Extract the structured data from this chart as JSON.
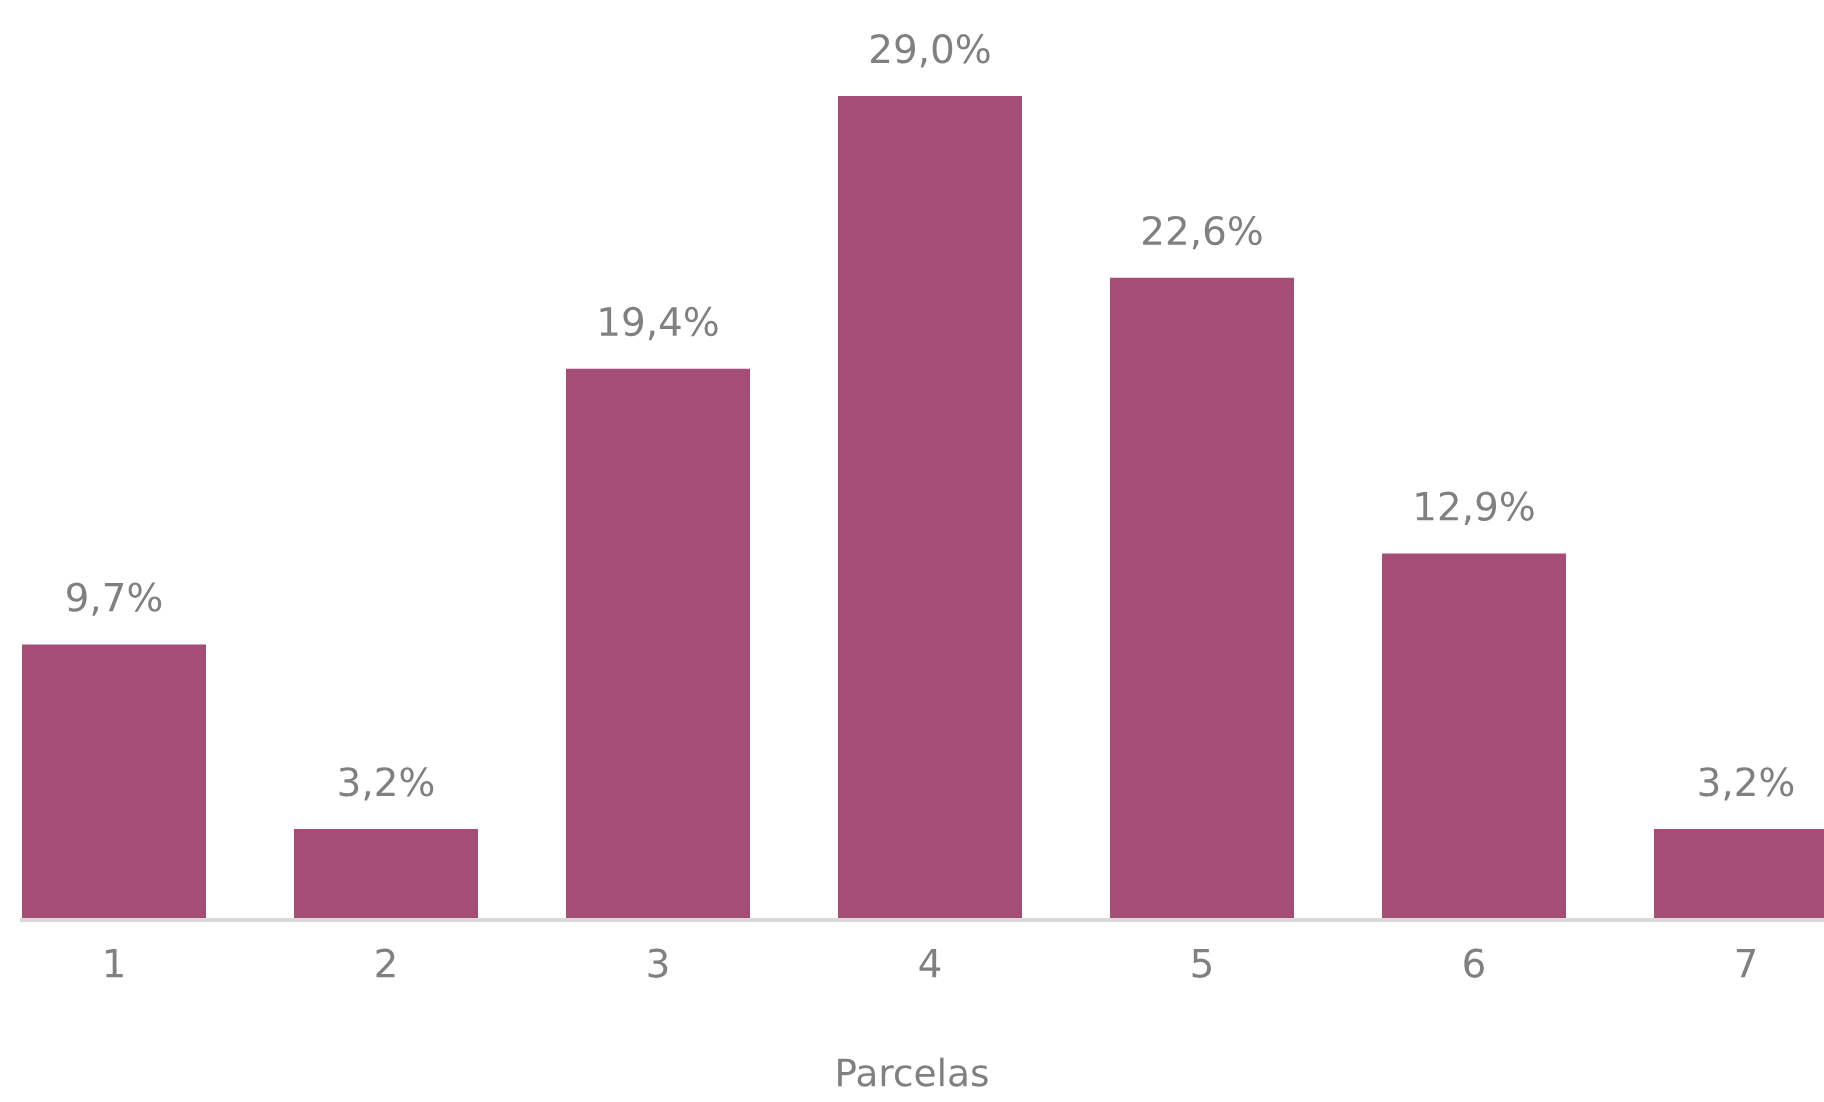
{
  "chart_data": {
    "type": "bar",
    "xlabel": "Parcelas",
    "categories": [
      "1",
      "2",
      "3",
      "4",
      "5",
      "6",
      "7"
    ],
    "values": [
      9.7,
      3.2,
      19.4,
      29.0,
      22.6,
      12.9,
      3.2
    ],
    "value_labels": [
      "9,7%",
      "3,2%",
      "19,4%",
      "29,0%",
      "22,6%",
      "12,9%",
      "3,2%"
    ],
    "color": "#a54d76"
  }
}
